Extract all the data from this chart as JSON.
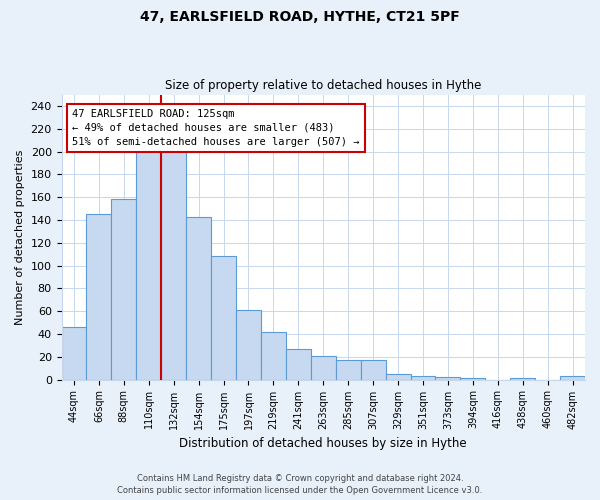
{
  "title": "47, EARLSFIELD ROAD, HYTHE, CT21 5PF",
  "subtitle": "Size of property relative to detached houses in Hythe",
  "xlabel": "Distribution of detached houses by size in Hythe",
  "ylabel": "Number of detached properties",
  "bar_labels": [
    "44sqm",
    "66sqm",
    "88sqm",
    "110sqm",
    "132sqm",
    "154sqm",
    "175sqm",
    "197sqm",
    "219sqm",
    "241sqm",
    "263sqm",
    "285sqm",
    "307sqm",
    "329sqm",
    "351sqm",
    "373sqm",
    "394sqm",
    "416sqm",
    "438sqm",
    "460sqm",
    "482sqm"
  ],
  "bar_heights": [
    46,
    145,
    158,
    201,
    201,
    143,
    108,
    61,
    42,
    27,
    21,
    17,
    17,
    5,
    3,
    2,
    1,
    0,
    1,
    0,
    3
  ],
  "bar_color": "#c6d9f0",
  "bar_edge_color": "#5b9bd5",
  "vline_color": "#cc0000",
  "annotation_lines": [
    "47 EARLSFIELD ROAD: 125sqm",
    "← 49% of detached houses are smaller (483)",
    "51% of semi-detached houses are larger (507) →"
  ],
  "annotation_box_color": "#cc0000",
  "ylim": [
    0,
    250
  ],
  "yticks": [
    0,
    20,
    40,
    60,
    80,
    100,
    120,
    140,
    160,
    180,
    200,
    220,
    240
  ],
  "grid_color": "#c8d8ec",
  "footer_line1": "Contains HM Land Registry data © Crown copyright and database right 2024.",
  "footer_line2": "Contains public sector information licensed under the Open Government Licence v3.0.",
  "bg_color": "#e8f0fa",
  "plot_bg_color": "#ffffff"
}
